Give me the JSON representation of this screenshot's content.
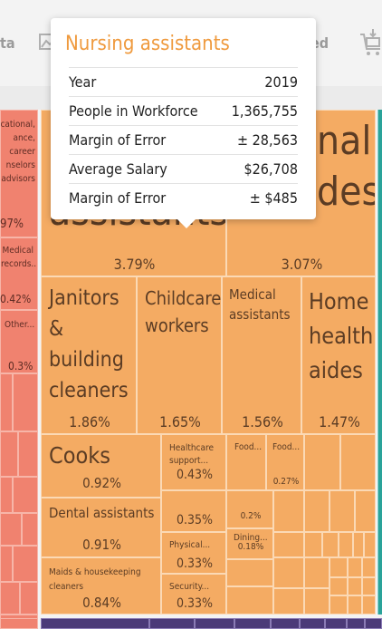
{
  "toolbar": {
    "data_fragment": "ta",
    "shared_fragment": "ed"
  },
  "tooltip": {
    "title": "Nursing assistants",
    "rows": [
      {
        "label": "Year",
        "value": "2019"
      },
      {
        "label": "People in Workforce",
        "value": "1,365,755"
      },
      {
        "label": "Margin of Error",
        "value": "± 28,563"
      },
      {
        "label": "Average Salary",
        "value": "$26,708"
      },
      {
        "label": "Margin of Error",
        "value": "± $485"
      }
    ]
  },
  "left": {
    "counselors": "cational, ance, career nselors advisors",
    "counselors_pct": "97%",
    "medical_records": "Medical records...",
    "medical_records_pct": "0.42%",
    "other": "Other...",
    "other_pct": "0.3%"
  },
  "tiles": {
    "nursing_bg": "assistants",
    "nursing_pct": "3.79%",
    "personal_bg_1": "nal",
    "personal_bg_2": "des",
    "personal_pct": "3.07%",
    "janitors": "Janitors & building cleaners",
    "janitors_pct": "1.86%",
    "childcare": "Childcare workers",
    "childcare_pct": "1.65%",
    "medical_assistants": "Medical assistants",
    "medical_assistants_pct": "1.56%",
    "home_health": "Home health aides",
    "home_health_pct": "1.47%",
    "cooks": "Cooks",
    "cooks_pct": "0.92%",
    "healthcare_support": "Healthcare support...",
    "healthcare_support_pct": "0.43%",
    "food1": "Food...",
    "food2": "Food...",
    "food2_pct": "0.27%",
    "dental": "Dental assistants",
    "dental_pct": "0.91%",
    "t035_pct": "0.35%",
    "t02_pct": "0.2%",
    "dining": "Dining...",
    "dining_pct": "0.18%",
    "physical": "Physical...",
    "physical_pct": "0.33%",
    "maids": "Maids & housekeeping cleaners",
    "maids_pct": "0.84%",
    "security": "Security...",
    "security_pct": "0.33%"
  },
  "colors": {
    "orange": "#f4ab63",
    "red": "#f0826f",
    "purple": "#4b3a78",
    "teal": "#2aa39a"
  }
}
